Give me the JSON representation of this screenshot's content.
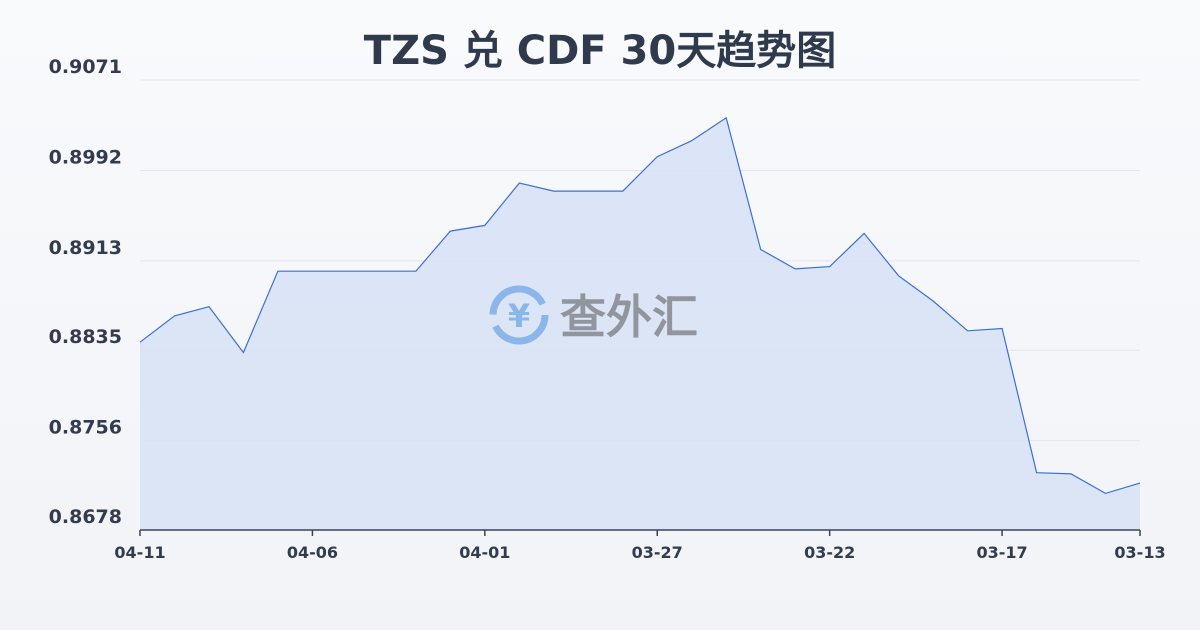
{
  "chart_data": {
    "type": "area",
    "title": "TZS 兑 CDF 30天趋势图",
    "xlabel": "",
    "ylabel": "",
    "x": [
      "04-11",
      "04-10",
      "04-09",
      "04-08",
      "04-07",
      "04-06",
      "04-05",
      "04-04",
      "04-03",
      "04-02",
      "04-01",
      "03-31",
      "03-30",
      "03-29",
      "03-28",
      "03-27",
      "03-26",
      "03-25",
      "03-24",
      "03-23",
      "03-22",
      "03-21",
      "03-20",
      "03-19",
      "03-18",
      "03-17",
      "03-16",
      "03-15",
      "03-14",
      "03-13"
    ],
    "values": [
      0.8842,
      0.8865,
      0.8873,
      0.8833,
      0.8904,
      0.8904,
      0.8904,
      0.8904,
      0.8904,
      0.8939,
      0.8944,
      0.8981,
      0.8974,
      0.8974,
      0.8974,
      0.9004,
      0.9018,
      0.9038,
      0.8923,
      0.8906,
      0.8908,
      0.8937,
      0.89,
      0.8878,
      0.8852,
      0.8854,
      0.8728,
      0.8727,
      0.871,
      0.8719
    ],
    "ylim": [
      0.8678,
      0.9071
    ],
    "yticks": [
      "0.9071",
      "0.8992",
      "0.8913",
      "0.8835",
      "0.8756",
      "0.8678"
    ],
    "xticks": [
      "04-11",
      "04-06",
      "04-01",
      "03-27",
      "03-22",
      "03-17",
      "03-13"
    ],
    "grid": true,
    "colors": {
      "line": "#3a6fd8",
      "fill": "#d7e2f6"
    }
  },
  "watermark": {
    "text": "查外汇",
    "icon": "yen-exchange-icon"
  }
}
